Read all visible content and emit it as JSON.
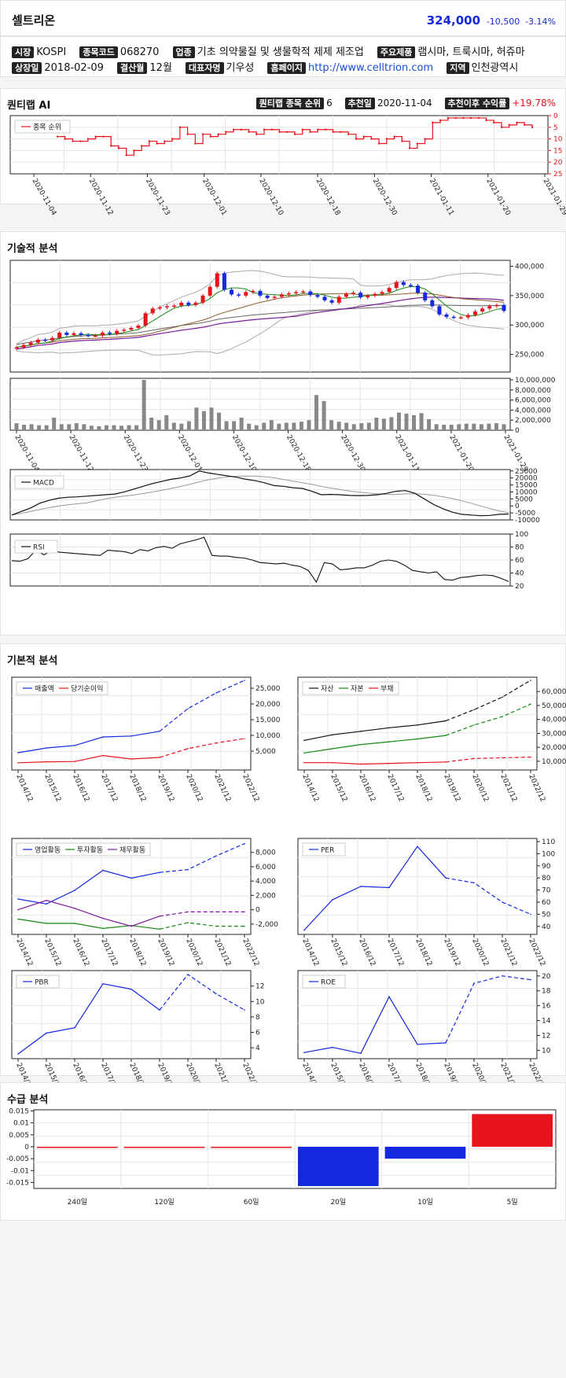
{
  "header": {
    "name": "셀트리온",
    "price": "324,000",
    "change": "-10,500",
    "pct": "-3.14%"
  },
  "info": {
    "market_l": "시장",
    "market": "KOSPI",
    "code_l": "종목코드",
    "code": "068270",
    "industry_l": "업종",
    "industry": "기초 의약물질 및 생물학적 제제 제조업",
    "products_l": "주요제품",
    "products": "램시마, 트룩시마, 허쥬마",
    "listed_l": "상장일",
    "listed": "2018-02-09",
    "fiscal_l": "결산월",
    "fiscal": "12월",
    "ceo_l": "대표자명",
    "ceo": "기우성",
    "home_l": "홈페이지",
    "home": "http://www.celltrion.com",
    "region_l": "지역",
    "region": "인천광역시"
  },
  "ai": {
    "title": "퀀티랩 AI",
    "rank_l": "퀀티랩 종목 순위",
    "rank": "6",
    "rec_l": "추천일",
    "rec": "2020-11-04",
    "ret_l": "추천이후 수익률",
    "ret": "+19.78%"
  },
  "dates": [
    "2020-11-04",
    "2020-11-12",
    "2020-11-23",
    "2020-12-01",
    "2020-12-10",
    "2020-12-18",
    "2020-12-30",
    "2021-01-11",
    "2021-01-20",
    "2021-01-29"
  ],
  "tech_title": "기술적 분석",
  "fund_title": "기본적 분석",
  "flow_title": "수급 분석",
  "colors": {
    "up": "#e8141c",
    "down": "#1428e0",
    "blue": "#1428e0",
    "red": "#e8141c",
    "green": "#148a14",
    "purple": "#7a1a9a",
    "black": "#111111",
    "gray": "#888888",
    "brown": "#8b5a2b"
  },
  "chart_data": [
    {
      "type": "line",
      "id": "rank",
      "legend": "종목 순위",
      "ylim": [
        25,
        0
      ],
      "yticks": [
        0,
        5,
        10,
        15,
        20,
        25
      ],
      "values": [
        9,
        10,
        11,
        11,
        10,
        9,
        9,
        13,
        14,
        17,
        15,
        13,
        11,
        12,
        11,
        10,
        5,
        8,
        12,
        8,
        9,
        8,
        7,
        6,
        6,
        7,
        8,
        6,
        6,
        7,
        7,
        8,
        6,
        7,
        6,
        6,
        7,
        7,
        8,
        10,
        9,
        10,
        12,
        10,
        9,
        11,
        14,
        12,
        10,
        3,
        2,
        1,
        1,
        1,
        1,
        1,
        2,
        3,
        5,
        4,
        3,
        4,
        5
      ]
    },
    {
      "type": "candlestick",
      "id": "price",
      "ylim": [
        220000,
        410000
      ],
      "yticks": [
        "250,000",
        "300,000",
        "350,000",
        "400,000"
      ],
      "close": [
        262000,
        266000,
        270000,
        275000,
        274000,
        278000,
        287000,
        283000,
        286000,
        283000,
        282000,
        282000,
        287000,
        285000,
        290000,
        292000,
        295000,
        299000,
        320000,
        328000,
        330000,
        332000,
        333000,
        338000,
        334000,
        338000,
        350000,
        365000,
        388000,
        360000,
        352000,
        350000,
        356000,
        358000,
        350000,
        346000,
        348000,
        352000,
        354000,
        356000,
        357000,
        351000,
        348000,
        342000,
        338000,
        348000,
        353000,
        355000,
        347000,
        350000,
        353000,
        356000,
        363000,
        373000,
        368000,
        367000,
        355000,
        342000,
        332000,
        318000,
        314000,
        313000,
        313000,
        317000,
        323000,
        328000,
        332000,
        334000,
        324000
      ]
    },
    {
      "type": "bar",
      "id": "volume",
      "ylim": [
        0,
        10000000
      ],
      "yticks": [
        "0",
        "2,000,000",
        "4,000,000",
        "6,000,000",
        "8,000,000",
        "10,000,000"
      ],
      "values": [
        1400000,
        1100000,
        1200000,
        1000000,
        1000000,
        2500000,
        1200000,
        1200000,
        1400000,
        1200000,
        900000,
        800000,
        1000000,
        1000000,
        900000,
        1000000,
        1000000,
        10000000,
        2500000,
        2000000,
        3000000,
        1500000,
        1300000,
        1800000,
        4500000,
        3800000,
        4500000,
        3500000,
        1800000,
        1800000,
        2500000,
        1300000,
        1000000,
        1500000,
        2000000,
        1300000,
        1500000,
        1500000,
        1700000,
        2000000,
        7000000,
        5800000,
        2000000,
        1700000,
        1500000,
        1200000,
        1400000,
        1500000,
        2500000,
        2300000,
        2600000,
        3500000,
        3300000,
        3000000,
        3400000,
        2200000,
        1200000,
        1100000,
        1100000,
        1200000,
        1300000,
        1300000,
        1200000,
        1300000,
        1400000,
        1200000
      ]
    },
    {
      "type": "line",
      "id": "macd",
      "legend": "MACD",
      "ylim": [
        -10000,
        26000
      ],
      "yticks": [
        "-10000",
        "-5000",
        "0",
        "5000",
        "10000",
        "15000",
        "20000",
        "25000"
      ],
      "macd": [
        -6500,
        -4000,
        -1500,
        2000,
        4000,
        5500,
        6200,
        6500,
        7000,
        7500,
        8000,
        8500,
        10000,
        12000,
        14000,
        16000,
        17500,
        19000,
        20000,
        21500,
        25000,
        23500,
        22500,
        21500,
        20500,
        19000,
        18000,
        16500,
        14500,
        14000,
        13000,
        12500,
        10500,
        8000,
        8200,
        8000,
        7500,
        7400,
        7500,
        8000,
        9000,
        10500,
        11000,
        9000,
        5000,
        1000,
        -2000,
        -4500,
        -6000,
        -6500,
        -7000,
        -6800,
        -6000,
        -5800
      ]
    },
    {
      "type": "line",
      "id": "rsi",
      "legend": "RSI",
      "ylim": [
        20,
        100
      ],
      "yticks": [
        "20",
        "40",
        "60",
        "80",
        "100"
      ],
      "values": [
        59,
        58,
        62,
        75,
        68,
        74,
        72,
        71,
        70,
        69,
        68,
        67,
        75,
        74,
        73,
        70,
        76,
        74,
        79,
        81,
        78,
        85,
        88,
        91,
        95,
        67,
        66,
        66,
        64,
        63,
        60,
        56,
        55,
        54,
        55,
        52,
        50,
        44,
        26,
        56,
        54,
        45,
        46,
        48,
        48,
        52,
        58,
        60,
        58,
        52,
        44,
        42,
        40,
        42,
        30,
        29,
        33,
        34,
        36,
        37,
        36,
        32,
        27
      ]
    },
    {
      "type": "line",
      "id": "sales",
      "legend": [
        "매출액",
        "당기순이익"
      ],
      "categories": [
        "2014/12",
        "2015/12",
        "2016/12",
        "2017/12",
        "2018/12",
        "2019/12",
        "2020/12",
        "2021/12",
        "2022/12"
      ],
      "series": [
        {
          "name": "매출액",
          "values": [
            4500,
            6000,
            6800,
            9500,
            9800,
            11300,
            18500,
            23500,
            27500
          ]
        },
        {
          "name": "당기순이익",
          "values": [
            1300,
            1600,
            1700,
            3600,
            2500,
            3000,
            5800,
            7600,
            9000
          ]
        }
      ],
      "ylim": [
        0,
        27500
      ],
      "yticks": [
        "5,000",
        "10,000",
        "15,000",
        "20,000",
        "25,000"
      ],
      "forecast_from": 5
    },
    {
      "type": "line",
      "id": "assets",
      "legend": [
        "자산",
        "자본",
        "부채"
      ],
      "categories": [
        "2014/12",
        "2015/12",
        "2016/12",
        "2017/12",
        "2018/12",
        "2019/12",
        "2020/12",
        "2021/12",
        "2022/12"
      ],
      "series": [
        {
          "name": "자산",
          "values": [
            25000,
            29000,
            31500,
            34000,
            36000,
            39000,
            47000,
            56000,
            68000
          ]
        },
        {
          "name": "자본",
          "values": [
            16000,
            19000,
            22000,
            24000,
            26000,
            28500,
            36000,
            42000,
            51000
          ]
        },
        {
          "name": "부채",
          "values": [
            9000,
            9000,
            8000,
            8500,
            9000,
            9500,
            12000,
            12500,
            13000
          ]
        }
      ],
      "ylim": [
        6000,
        68000
      ],
      "yticks": [
        "10,000",
        "20,000",
        "30,000",
        "40,000",
        "50,000",
        "60,000"
      ],
      "forecast_from": 5
    },
    {
      "type": "line",
      "id": "cashflow",
      "legend": [
        "영업활동",
        "투자활동",
        "재무활동"
      ],
      "categories": [
        "2014/12",
        "2015/12",
        "2016/12",
        "2017/12",
        "2018/12",
        "2019/12",
        "2020/12",
        "2021/12",
        "2022/12"
      ],
      "series": [
        {
          "name": "영업활동",
          "values": [
            1500,
            800,
            2700,
            5500,
            4400,
            5200,
            5600,
            7500,
            9200
          ]
        },
        {
          "name": "투자활동",
          "values": [
            -1300,
            -1900,
            -1900,
            -2600,
            -2200,
            -2700,
            -1800,
            -2300,
            -2300
          ]
        },
        {
          "name": "재무활동",
          "values": [
            0,
            1300,
            200,
            -1200,
            -2300,
            -900,
            -300,
            -300,
            -300
          ]
        }
      ],
      "ylim": [
        -3000,
        9500
      ],
      "yticks": [
        "-2,000",
        "0",
        "2,000",
        "4,000",
        "6,000",
        "8,000"
      ],
      "forecast_from": 5
    },
    {
      "type": "line",
      "id": "per",
      "legend": [
        "PER"
      ],
      "categories": [
        "2014/12",
        "2015/12",
        "2016/12",
        "2017/12",
        "2018/12",
        "2019/12",
        "2020/12",
        "2021/12",
        "2022/12"
      ],
      "series": [
        {
          "name": "PER",
          "values": [
            37,
            62,
            73,
            72,
            106,
            80,
            76,
            60,
            50
          ]
        }
      ],
      "ylim": [
        36,
        110
      ],
      "yticks": [
        "40",
        "50",
        "60",
        "70",
        "80",
        "90",
        "100",
        "110"
      ],
      "forecast_from": 5
    },
    {
      "type": "line",
      "id": "pbr",
      "legend": [
        "PBR"
      ],
      "categories": [
        "2014/12",
        "2015/12",
        "2016/12",
        "2017/12",
        "2018/12",
        "2019/12",
        "2020/12",
        "2021/12",
        "2022/12"
      ],
      "series": [
        {
          "name": "PBR",
          "values": [
            3.2,
            5.9,
            6.6,
            12.3,
            11.6,
            8.9,
            13.5,
            11,
            8.9
          ]
        }
      ],
      "ylim": [
        3,
        13.6
      ],
      "yticks": [
        "4",
        "6",
        "8",
        "10",
        "12"
      ],
      "forecast_from": 5
    },
    {
      "type": "line",
      "id": "roe",
      "legend": [
        "ROE"
      ],
      "categories": [
        "2014/12",
        "2015/12",
        "2016/12",
        "2017/12",
        "2018/12",
        "2019/12",
        "2020/12",
        "2021/12",
        "2022/12"
      ],
      "series": [
        {
          "name": "ROE",
          "values": [
            9.7,
            10.4,
            9.6,
            17.2,
            10.8,
            11,
            19,
            20,
            19.5
          ]
        }
      ],
      "ylim": [
        9.3,
        20.3
      ],
      "yticks": [
        "10",
        "12",
        "14",
        "16",
        "18",
        "20"
      ],
      "forecast_from": 5
    },
    {
      "type": "bar",
      "id": "flow",
      "categories": [
        "240일",
        "120일",
        "60일",
        "20일",
        "10일",
        "5일"
      ],
      "values": [
        0,
        0,
        0,
        -0.0165,
        -0.005,
        0.0137
      ],
      "ylim": [
        -0.0175,
        0.0155
      ],
      "yticks": [
        "-0.015",
        "-0.01",
        "-0.005",
        "0",
        "0.005",
        "0.01",
        "0.015"
      ]
    }
  ]
}
